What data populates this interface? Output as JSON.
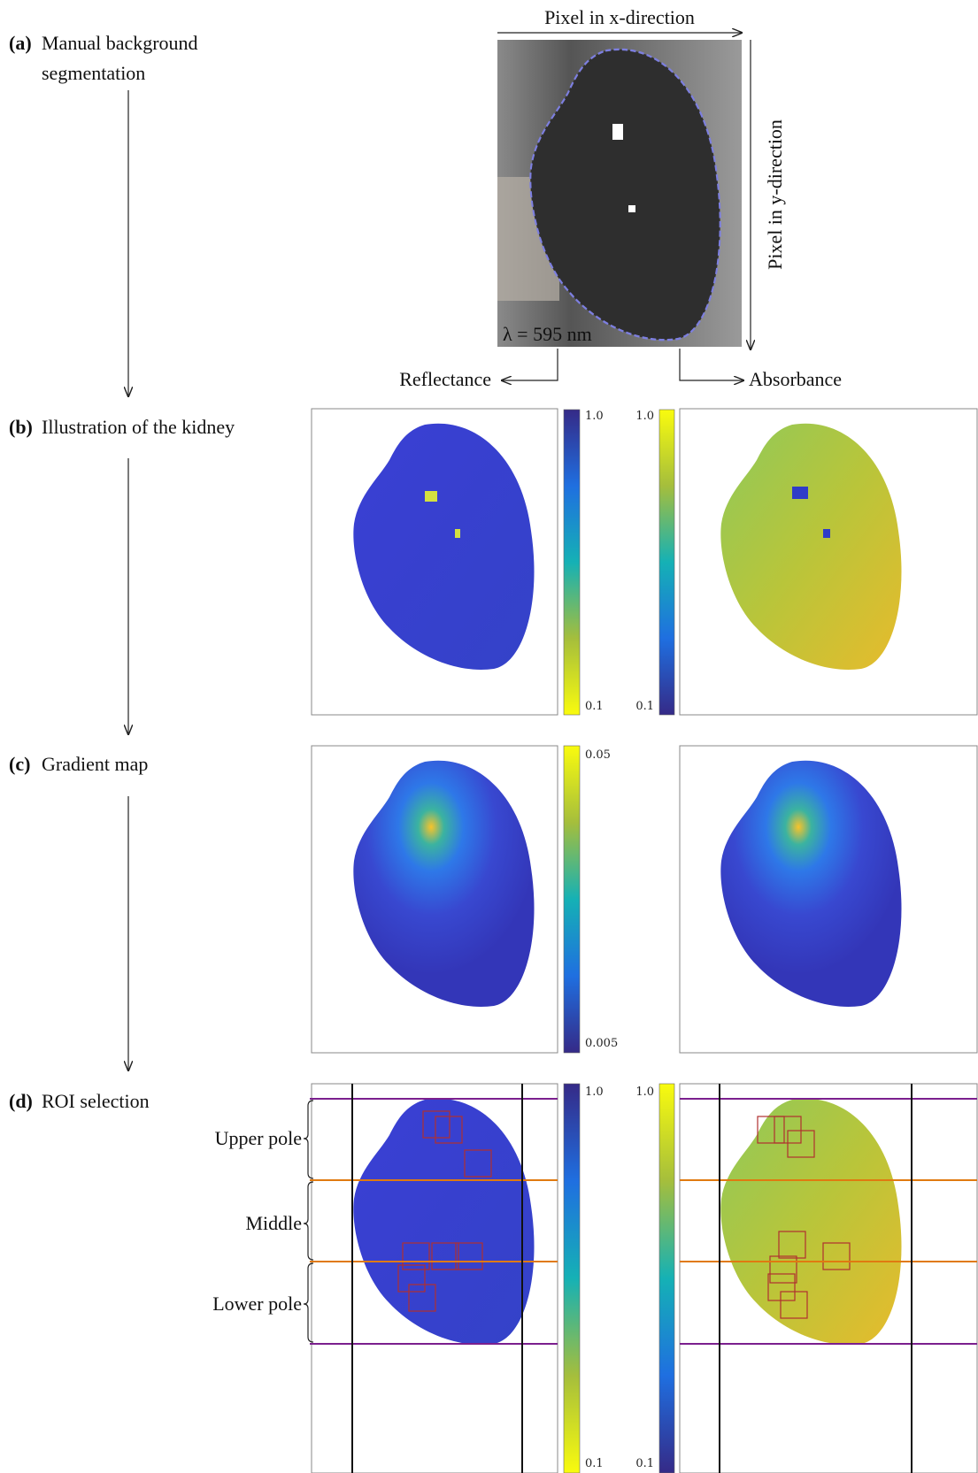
{
  "steps": [
    {
      "label": "(a)",
      "lines": [
        "Manual background",
        "segmentation"
      ]
    },
    {
      "label": "(b)",
      "lines": [
        "Illustration of the kidney"
      ]
    },
    {
      "label": "(c)",
      "lines": [
        "Gradient map"
      ]
    },
    {
      "label": "(d)",
      "lines": [
        "ROI selection"
      ]
    }
  ],
  "top_panel": {
    "x_axis": "Pixel in x-direction",
    "y_axis": "Pixel in y-direction",
    "wavelength": "λ = 595 nm",
    "left_branch": "Reflectance",
    "right_branch": "Absorbance"
  },
  "colorbars": {
    "b_reflectance": [
      "1.0",
      "0.1"
    ],
    "b_absorbance": [
      "1.0",
      "0.1"
    ],
    "c_gradient": [
      "0.05",
      "0.005"
    ],
    "d_reflectance": [
      "1.0",
      "0.1"
    ],
    "d_absorbance": [
      "1.0",
      "0.1"
    ]
  },
  "roi_regions": [
    "Upper pole",
    "Middle",
    "Lower pole"
  ]
}
